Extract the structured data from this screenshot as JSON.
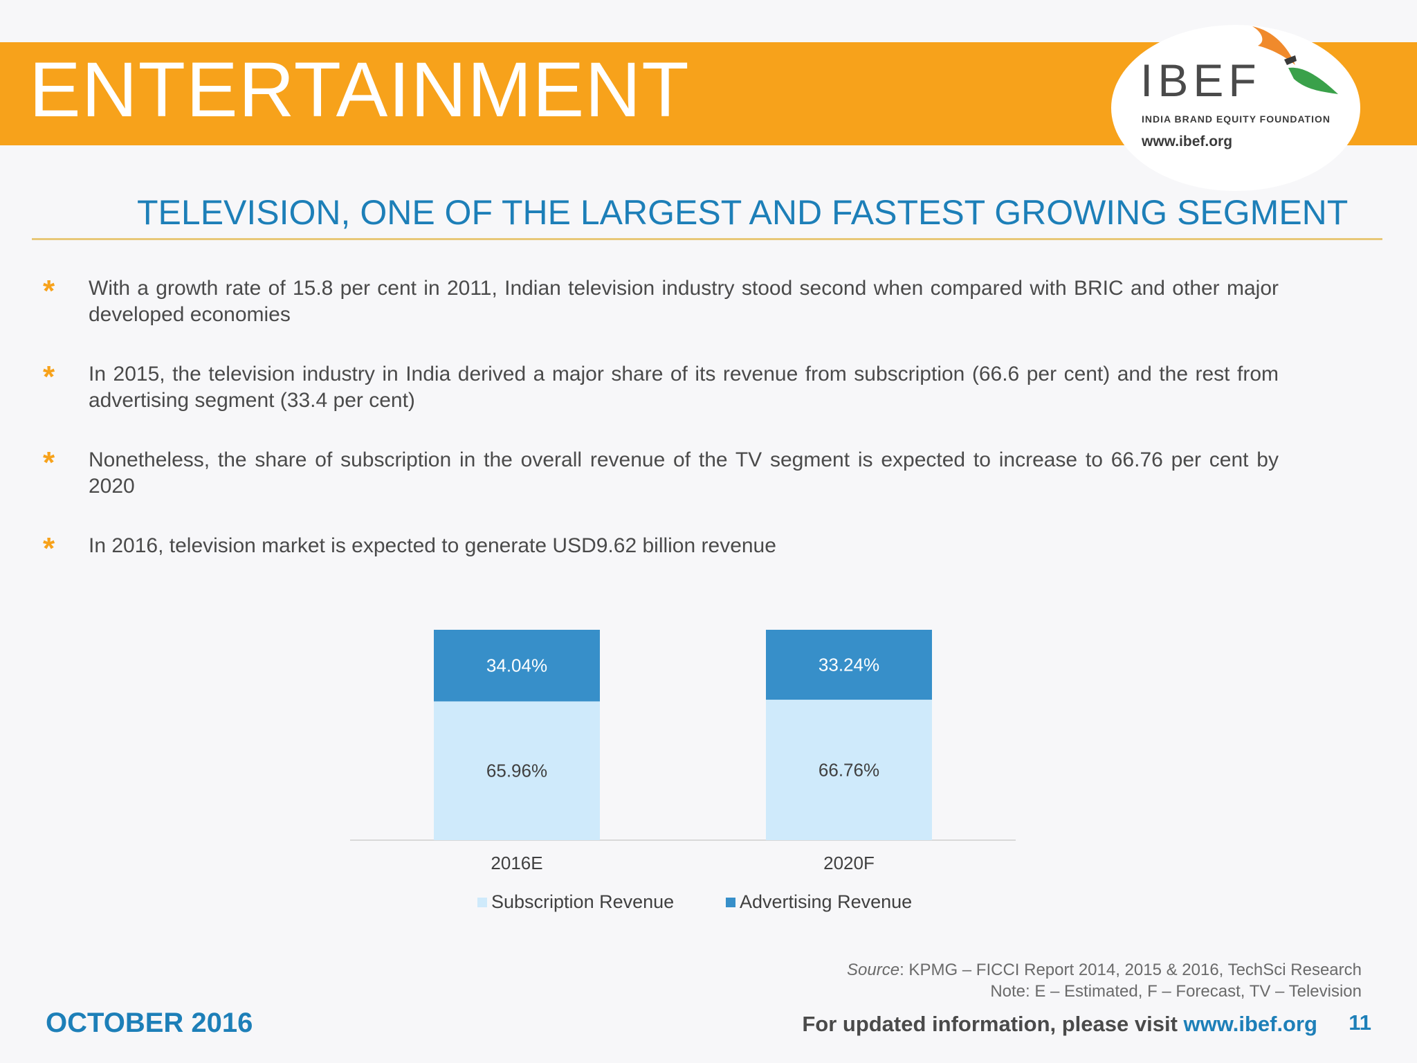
{
  "header": {
    "title": "ENTERTAINMENT",
    "logo_word": "IBEF",
    "logo_sub": "INDIA BRAND EQUITY FOUNDATION",
    "logo_url": "www.ibef.org"
  },
  "section_title": "TELEVISION, ONE OF THE LARGEST AND FASTEST GROWING SEGMENT",
  "bullets": [
    "With a growth rate of 15.8 per cent in 2011, Indian television industry stood second when compared with BRIC and other major developed economies",
    "In 2015, the television industry in India derived a major share of its revenue from subscription (66.6 per cent) and the rest from advertising segment (33.4 per cent)",
    "Nonetheless, the share of subscription in the overall revenue of the TV segment is expected to increase to 66.76 per cent by 2020",
    "In 2016, television market is expected to generate USD9.62 billion revenue"
  ],
  "chart_data": {
    "type": "bar",
    "stacked": true,
    "categories": [
      "2016E",
      "2020F"
    ],
    "series": [
      {
        "name": "Subscription Revenue",
        "values": [
          65.96,
          66.76
        ],
        "labels": [
          "65.96%",
          "66.76%"
        ],
        "color": "#cfeafb"
      },
      {
        "name": "Advertising Revenue",
        "values": [
          34.04,
          33.24
        ],
        "labels": [
          "34.04%",
          "33.24%"
        ],
        "color": "#378fc9"
      }
    ],
    "ylim": [
      0,
      100
    ],
    "grid": false,
    "legend": "bottom"
  },
  "legend": {
    "subscription": "Subscription Revenue",
    "advertising": "Advertising Revenue"
  },
  "source": {
    "label": "Source",
    "text": ": KPMG – FICCI Report 2014, 2015 & 2016, TechSci Research",
    "note": "Note: E – Estimated, F – Forecast, TV – Television"
  },
  "footer": {
    "date": "OCTOBER 2016",
    "visit_text": "For updated information, please visit ",
    "visit_link": "www.ibef.org",
    "page_number": "11"
  }
}
